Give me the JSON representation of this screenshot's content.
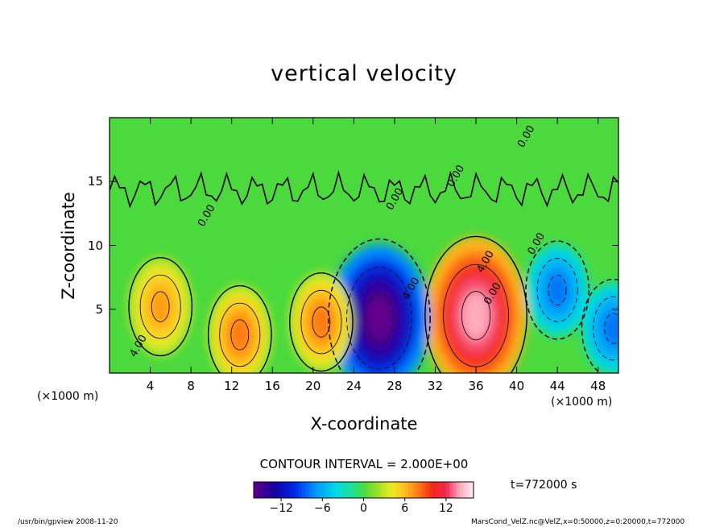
{
  "chart_data": {
    "type": "heatmap",
    "title": "vertical velocity",
    "xlabel": "X-coordinate",
    "ylabel": "Z-coordinate",
    "x_unit": "(×1000 m)",
    "xlim": [
      0,
      50
    ],
    "ylim": [
      0,
      20
    ],
    "x_ticks": [
      4,
      8,
      12,
      16,
      20,
      24,
      28,
      32,
      36,
      40,
      44,
      48
    ],
    "y_ticks": [
      5,
      10,
      15
    ],
    "contour_interval_text": "CONTOUR INTERVAL = 2.000E+00",
    "time_text": "t=772000 s",
    "colorbar": {
      "range": [
        -16,
        16
      ],
      "tick_values": [
        -12,
        -6,
        0,
        6,
        12
      ],
      "tick_labels": [
        "−12",
        "−6",
        "0",
        "6",
        "12"
      ]
    },
    "contour_labels": [
      {
        "text": "4.00",
        "x": 37.2,
        "y": 8.6
      },
      {
        "text": "0.00",
        "x": 28.3,
        "y": 13.5
      },
      {
        "text": "0.00",
        "x": 9.8,
        "y": 12.2
      },
      {
        "text": "0.00",
        "x": 34.3,
        "y": 15.3
      },
      {
        "text": "0.00",
        "x": 42.2,
        "y": 10.0
      },
      {
        "text": "0.00",
        "x": 41.2,
        "y": 18.4
      },
      {
        "text": "0.00",
        "x": 37.9,
        "y": 6.1
      },
      {
        "text": "4.00",
        "x": 29.9,
        "y": 6.5
      },
      {
        "text": "4.00",
        "x": 3.1,
        "y": 2.0
      }
    ],
    "features": [
      {
        "kind": "updraft",
        "x": 36.0,
        "z": 4.5,
        "peak": 14
      },
      {
        "kind": "downdraft",
        "x": 26.5,
        "z": 4.3,
        "peak": -16
      },
      {
        "kind": "updraft",
        "x": 5.0,
        "z": 5.2,
        "peak": 7
      },
      {
        "kind": "updraft",
        "x": 12.8,
        "z": 3.0,
        "peak": 8
      },
      {
        "kind": "updraft",
        "x": 20.8,
        "z": 4.0,
        "peak": 8
      },
      {
        "kind": "downdraft",
        "x": 44.0,
        "z": 6.5,
        "peak": -8
      },
      {
        "kind": "downdraft",
        "x": 49.5,
        "z": 3.5,
        "peak": -8
      }
    ]
  },
  "footer": {
    "left": "/usr/bin/gpview   2008-11-20",
    "right": "MarsCond_VelZ.nc@VelZ,x=0:50000,z=0:20000,t=772000"
  }
}
